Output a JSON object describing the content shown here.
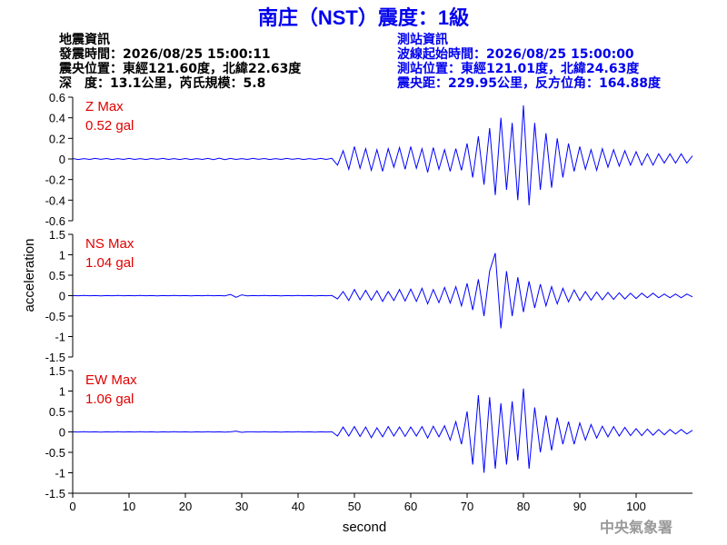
{
  "header": {
    "title": "南庄（NST）震度：1級",
    "event": {
      "heading": "地震資訊",
      "lines": [
        "發震時間：2026/08/25 15:00:11",
        "震央位置：東經121.60度，北緯22.63度",
        "深　度：13.1公里，芮氏規模：5.8"
      ]
    },
    "station": {
      "heading": "測站資訊",
      "lines": [
        "波線起始時間：2026/08/25 15:00:00",
        "測站位置：東經121.01度，北緯24.63度",
        "震央距：229.95公里，反方位角：164.88度"
      ]
    }
  },
  "y_label": "acceleration",
  "credit": "中央氣象署",
  "chart_data": [
    {
      "type": "line",
      "label": "Z Max",
      "max_label": "0.52 gal",
      "color": "#0000ff",
      "label_color": "#e00000",
      "xlim": [
        0,
        110
      ],
      "ylim": [
        -0.6,
        0.6
      ],
      "yticks": [
        -0.6,
        -0.4,
        -0.2,
        0,
        0.2,
        0.4,
        0.6
      ],
      "x": [
        0,
        1,
        2,
        3,
        4,
        5,
        6,
        7,
        8,
        9,
        10,
        11,
        12,
        13,
        14,
        15,
        16,
        17,
        18,
        19,
        20,
        21,
        22,
        23,
        24,
        25,
        26,
        27,
        28,
        29,
        30,
        31,
        32,
        33,
        34,
        35,
        36,
        37,
        38,
        39,
        40,
        41,
        42,
        43,
        44,
        45,
        46,
        47,
        48,
        49,
        50,
        51,
        52,
        53,
        54,
        55,
        56,
        57,
        58,
        59,
        60,
        61,
        62,
        63,
        64,
        65,
        66,
        67,
        68,
        69,
        70,
        71,
        72,
        73,
        74,
        75,
        76,
        77,
        78,
        79,
        80,
        81,
        82,
        83,
        84,
        85,
        86,
        87,
        88,
        89,
        90,
        91,
        92,
        93,
        94,
        95,
        96,
        97,
        98,
        99,
        100,
        101,
        102,
        103,
        104,
        105,
        106,
        107,
        108,
        109,
        110
      ],
      "values": [
        0.004,
        -0.005,
        0.003,
        -0.004,
        0.005,
        -0.003,
        0.004,
        -0.005,
        0.003,
        -0.004,
        0.005,
        -0.004,
        0.003,
        -0.005,
        0.004,
        -0.003,
        0.005,
        -0.004,
        0.003,
        -0.005,
        0.004,
        -0.005,
        0.003,
        -0.004,
        0.005,
        -0.006,
        0.008,
        -0.007,
        0.005,
        -0.004,
        0.003,
        -0.004,
        0.005,
        -0.003,
        0.004,
        -0.005,
        0.003,
        -0.004,
        0.005,
        -0.003,
        0.004,
        -0.005,
        0.003,
        -0.004,
        0.005,
        -0.004,
        0.006,
        -0.06,
        0.08,
        -0.1,
        0.12,
        -0.09,
        0.1,
        -0.11,
        0.09,
        -0.12,
        0.1,
        -0.08,
        0.11,
        -0.1,
        0.12,
        -0.09,
        0.1,
        -0.13,
        0.11,
        -0.1,
        0.09,
        -0.12,
        0.1,
        -0.11,
        0.15,
        -0.18,
        0.22,
        -0.25,
        0.3,
        -0.35,
        0.4,
        -0.3,
        0.35,
        -0.4,
        0.52,
        -0.45,
        0.35,
        -0.3,
        0.25,
        -0.28,
        0.2,
        -0.18,
        0.15,
        -0.12,
        0.12,
        -0.1,
        0.09,
        -0.11,
        0.1,
        -0.08,
        0.09,
        -0.07,
        0.08,
        -0.06,
        0.07,
        -0.06,
        0.05,
        -0.06,
        0.05,
        -0.04,
        0.05,
        -0.04,
        0.05,
        -0.04,
        0.03
      ]
    },
    {
      "type": "line",
      "label": "NS Max",
      "max_label": "1.04 gal",
      "color": "#0000ff",
      "label_color": "#e00000",
      "xlim": [
        0,
        110
      ],
      "ylim": [
        -1.5,
        1.5
      ],
      "yticks": [
        -1.5,
        -1,
        -0.5,
        0,
        0.5,
        1,
        1.5
      ],
      "x": [
        0,
        1,
        2,
        3,
        4,
        5,
        6,
        7,
        8,
        9,
        10,
        11,
        12,
        13,
        14,
        15,
        16,
        17,
        18,
        19,
        20,
        21,
        22,
        23,
        24,
        25,
        26,
        27,
        28,
        29,
        30,
        31,
        32,
        33,
        34,
        35,
        36,
        37,
        38,
        39,
        40,
        41,
        42,
        43,
        44,
        45,
        46,
        47,
        48,
        49,
        50,
        51,
        52,
        53,
        54,
        55,
        56,
        57,
        58,
        59,
        60,
        61,
        62,
        63,
        64,
        65,
        66,
        67,
        68,
        69,
        70,
        71,
        72,
        73,
        74,
        75,
        76,
        77,
        78,
        79,
        80,
        81,
        82,
        83,
        84,
        85,
        86,
        87,
        88,
        89,
        90,
        91,
        92,
        93,
        94,
        95,
        96,
        97,
        98,
        99,
        100,
        101,
        102,
        103,
        104,
        105,
        106,
        107,
        108,
        109,
        110
      ],
      "values": [
        0.004,
        -0.003,
        0.005,
        -0.004,
        0.003,
        -0.005,
        0.004,
        -0.003,
        0.005,
        -0.004,
        0.003,
        -0.004,
        0.005,
        -0.003,
        0.004,
        -0.005,
        0.003,
        -0.004,
        0.005,
        -0.003,
        0.004,
        -0.005,
        0.003,
        -0.004,
        0.005,
        -0.003,
        0.004,
        -0.005,
        0.03,
        -0.04,
        0.02,
        -0.005,
        0.003,
        -0.004,
        0.005,
        -0.003,
        0.004,
        -0.005,
        0.003,
        -0.004,
        0.005,
        -0.003,
        0.004,
        -0.005,
        0.003,
        -0.004,
        0.005,
        -0.08,
        0.1,
        -0.12,
        0.15,
        -0.1,
        0.13,
        -0.11,
        0.12,
        -0.14,
        0.1,
        -0.12,
        0.15,
        -0.13,
        0.16,
        -0.14,
        0.18,
        -0.2,
        0.15,
        -0.17,
        0.2,
        -0.18,
        0.22,
        -0.25,
        0.3,
        -0.35,
        0.4,
        -0.5,
        0.6,
        1.04,
        -0.8,
        0.6,
        -0.5,
        0.45,
        -0.4,
        0.35,
        -0.3,
        0.28,
        -0.25,
        0.22,
        -0.2,
        0.18,
        -0.15,
        0.14,
        -0.12,
        0.1,
        -0.11,
        0.09,
        -0.1,
        0.08,
        -0.09,
        0.07,
        -0.08,
        0.06,
        -0.07,
        0.06,
        -0.05,
        0.06,
        -0.05,
        0.04,
        -0.05,
        0.04,
        -0.05,
        0.04,
        -0.03
      ]
    },
    {
      "type": "line",
      "label": "EW Max",
      "max_label": "1.06 gal",
      "color": "#0000ff",
      "label_color": "#e00000",
      "xlim": [
        0,
        110
      ],
      "ylim": [
        -1.5,
        1.5
      ],
      "yticks": [
        -1.5,
        -1,
        -0.5,
        0,
        0.5,
        1,
        1.5
      ],
      "xticks": [
        0,
        10,
        20,
        30,
        40,
        50,
        60,
        70,
        80,
        90,
        100
      ],
      "xlabel": "second",
      "x": [
        0,
        1,
        2,
        3,
        4,
        5,
        6,
        7,
        8,
        9,
        10,
        11,
        12,
        13,
        14,
        15,
        16,
        17,
        18,
        19,
        20,
        21,
        22,
        23,
        24,
        25,
        26,
        27,
        28,
        29,
        30,
        31,
        32,
        33,
        34,
        35,
        36,
        37,
        38,
        39,
        40,
        41,
        42,
        43,
        44,
        45,
        46,
        47,
        48,
        49,
        50,
        51,
        52,
        53,
        54,
        55,
        56,
        57,
        58,
        59,
        60,
        61,
        62,
        63,
        64,
        65,
        66,
        67,
        68,
        69,
        70,
        71,
        72,
        73,
        74,
        75,
        76,
        77,
        78,
        79,
        80,
        81,
        82,
        83,
        84,
        85,
        86,
        87,
        88,
        89,
        90,
        91,
        92,
        93,
        94,
        95,
        96,
        97,
        98,
        99,
        100,
        101,
        102,
        103,
        104,
        105,
        106,
        107,
        108,
        109,
        110
      ],
      "values": [
        0.004,
        -0.003,
        0.005,
        -0.004,
        0.003,
        -0.005,
        0.004,
        -0.003,
        0.005,
        -0.004,
        0.003,
        -0.004,
        0.005,
        -0.003,
        0.004,
        -0.005,
        0.003,
        -0.004,
        0.005,
        -0.003,
        0.004,
        -0.005,
        0.003,
        -0.004,
        0.005,
        -0.003,
        0.004,
        -0.005,
        0.003,
        0.02,
        -0.01,
        0.004,
        0.003,
        -0.004,
        0.005,
        -0.003,
        0.004,
        -0.005,
        0.003,
        -0.004,
        0.005,
        -0.003,
        0.004,
        -0.005,
        0.003,
        -0.004,
        0.005,
        -0.1,
        0.12,
        -0.1,
        0.13,
        -0.11,
        0.12,
        -0.14,
        0.1,
        -0.12,
        0.13,
        -0.1,
        0.12,
        -0.11,
        0.12,
        -0.1,
        0.13,
        -0.15,
        0.14,
        -0.12,
        0.15,
        -0.2,
        0.25,
        -0.3,
        0.5,
        -0.8,
        0.9,
        -1,
        0.85,
        -0.9,
        0.7,
        -0.8,
        0.75,
        -0.7,
        1.06,
        -0.9,
        0.6,
        -0.5,
        0.4,
        -0.45,
        0.35,
        -0.3,
        0.25,
        -0.3,
        0.22,
        -0.2,
        0.18,
        -0.15,
        0.14,
        -0.12,
        0.13,
        -0.1,
        0.11,
        -0.09,
        0.08,
        -0.09,
        0.07,
        -0.08,
        0.06,
        -0.07,
        0.06,
        -0.05,
        0.06,
        -0.05,
        0.04
      ]
    }
  ]
}
